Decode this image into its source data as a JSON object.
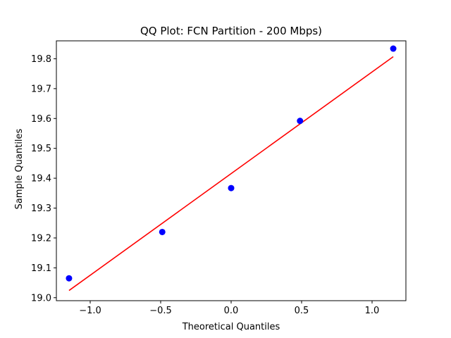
{
  "chart_data": {
    "type": "scatter",
    "title": "QQ Plot: FCN Partition - 200 Mbps)",
    "xlabel": "Theoretical Quantiles",
    "ylabel": "Sample Quantiles",
    "xlim": [
      -1.24,
      1.24
    ],
    "ylim": [
      18.99,
      19.86
    ],
    "x_ticks": [
      -1.0,
      -0.5,
      0.0,
      0.5,
      1.0
    ],
    "x_tick_labels": [
      "−1.0",
      "−0.5",
      "0.0",
      "0.5",
      "1.0"
    ],
    "y_ticks": [
      19.0,
      19.1,
      19.2,
      19.3,
      19.4,
      19.5,
      19.6,
      19.7,
      19.8
    ],
    "y_tick_labels": [
      "19.0",
      "19.1",
      "19.2",
      "19.3",
      "19.4",
      "19.5",
      "19.6",
      "19.7",
      "19.8"
    ],
    "grid": false,
    "points": {
      "x": [
        -1.1503,
        -0.4888,
        0.0,
        0.4888,
        1.1503
      ],
      "y": [
        19.065,
        19.22,
        19.367,
        19.592,
        19.834
      ],
      "color": "#0000ff"
    },
    "fit_line": {
      "x": [
        -1.1503,
        1.1503
      ],
      "y": [
        19.024,
        19.807
      ],
      "color": "#ff0000"
    }
  }
}
